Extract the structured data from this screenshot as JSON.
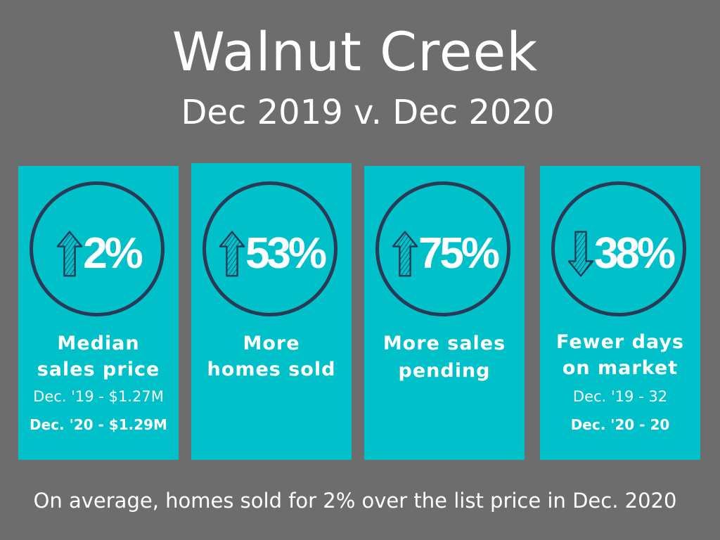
{
  "header": {
    "title": "Walnut Creek",
    "subtitle": "Dec 2019 v. Dec 2020"
  },
  "cards": [
    {
      "direction": "up",
      "value": "2%",
      "label_line1": "Median",
      "label_line2": "sales price",
      "detail_prev": "Dec. '19 - $1.27M",
      "detail_curr": "Dec. '20 - $1.29M"
    },
    {
      "direction": "up",
      "value": "53%",
      "label_line1": "More",
      "label_line2": "homes sold"
    },
    {
      "direction": "up",
      "value": "75%",
      "label_line1": "More sales",
      "label_line2": "pending"
    },
    {
      "direction": "down",
      "value": "38%",
      "label_line1": "Fewer days",
      "label_line2": "on market",
      "detail_prev": "Dec. '19 - 32",
      "detail_curr": "Dec. '20 - 20"
    }
  ],
  "footer": {
    "text": "On average, homes sold for 2% over the list price in Dec. 2020"
  },
  "colors": {
    "background": "#6d6d6d",
    "card": "#00c1c9",
    "ring": "#2b3957",
    "text": "#ffffff"
  },
  "icons": {
    "up": "arrow-up-icon",
    "down": "arrow-down-icon"
  }
}
